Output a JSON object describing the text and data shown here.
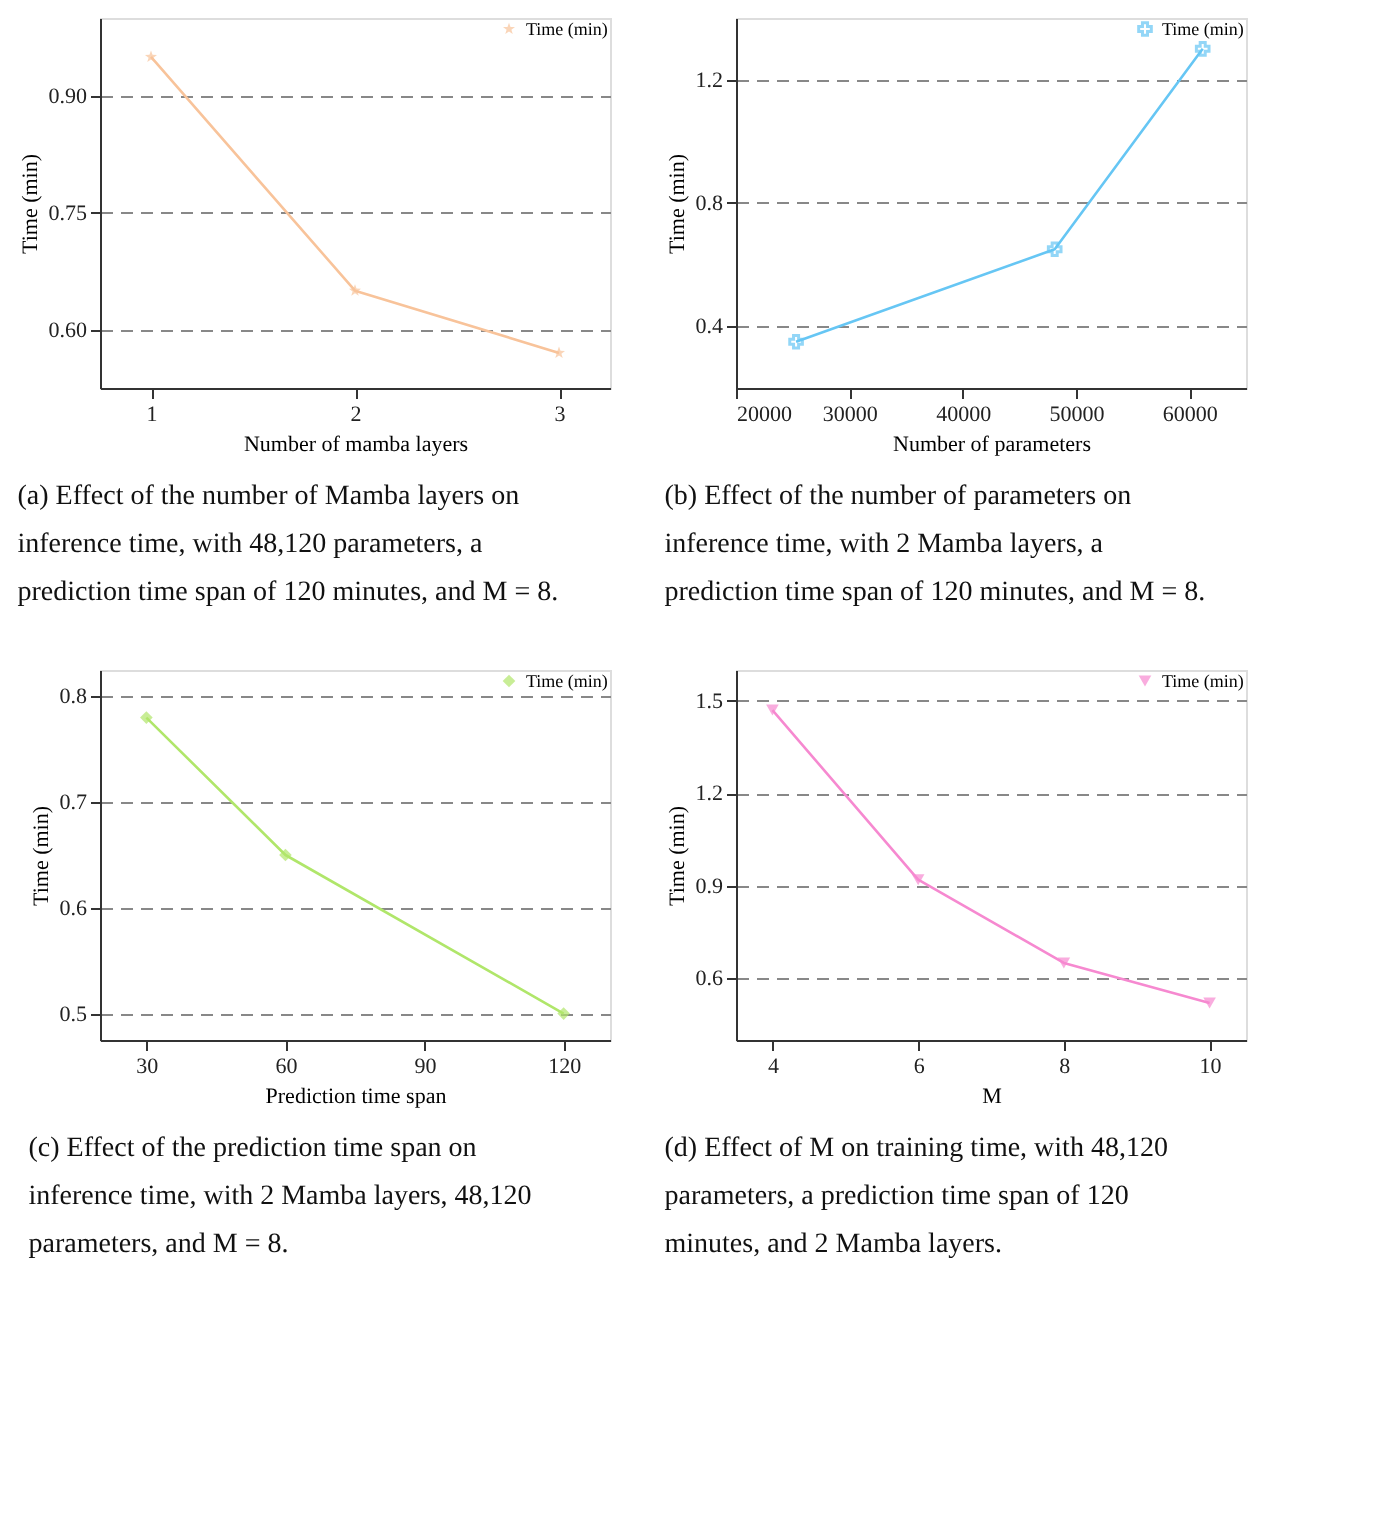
{
  "chart_data": [
    {
      "type": "line",
      "xlabel": "Number of mamba layers",
      "ylabel": "Time (min)",
      "x": [
        1,
        2,
        3
      ],
      "series": [
        {
          "name": "Time (min)",
          "color": "#f8c39a",
          "values": [
            0.95,
            0.65,
            0.57
          ]
        }
      ],
      "xlim": [
        0.75,
        3.25
      ],
      "xticks": [
        1,
        2,
        3
      ],
      "ylim": [
        0.525,
        1.0
      ],
      "yticks": [
        {
          "value": 0.6,
          "label": "0.60"
        },
        {
          "value": 0.75,
          "label": "0.75"
        },
        {
          "value": 0.9,
          "label": "0.90"
        }
      ],
      "grid": "y",
      "legend": "top right",
      "marker": "star",
      "line_style": "solid",
      "annotations": [
        "(a) Effect of the number of Mamba layers on inference time, with 48,120 parameters, a prediction time span of 120 minutes, and M = 8."
      ]
    },
    {
      "type": "line",
      "xlabel": "Number of parameters",
      "ylabel": "Time (min)",
      "x": [
        25300,
        48120,
        61180
      ],
      "series": [
        {
          "name": "Time (min)",
          "color": "#66c6f4",
          "values": [
            0.35,
            0.65,
            1.3
          ]
        }
      ],
      "xlim": [
        20000,
        65000
      ],
      "xticks": [
        20000,
        30000,
        40000,
        50000,
        60000
      ],
      "ylim": [
        0.2,
        1.4
      ],
      "yticks": [
        0.4,
        0.8,
        1.2
      ],
      "grid": "y",
      "legend": "top right",
      "marker": "cross",
      "line_style": "solid",
      "annotations": [
        "(b) Effect of the number of parameters on inference time, with 2 Mamba layers, a prediction time span of 120 minutes, and M = 8."
      ]
    },
    {
      "type": "line",
      "xlabel": "Prediction time span",
      "ylabel": "Time (min)",
      "x": [
        30,
        60,
        120
      ],
      "series": [
        {
          "name": "Time (min)",
          "color": "#b0e66a",
          "values": [
            0.78,
            0.65,
            0.5
          ]
        }
      ],
      "xlim": [
        20,
        130
      ],
      "xticks": [
        30,
        60,
        90,
        120
      ],
      "ylim": [
        0.475,
        0.825
      ],
      "yticks": [
        0.5,
        0.6,
        0.7,
        0.8
      ],
      "grid": "y",
      "legend": "top right",
      "marker": "diamond",
      "line_style": "solid",
      "annotations": [
        "(c) Effect of the prediction time span on inference time, with 2 Mamba layers, 48,120 parameters, and M = 8."
      ]
    },
    {
      "type": "line",
      "xlabel": "M",
      "ylabel": "Time (min)",
      "x": [
        4,
        6,
        8,
        10
      ],
      "series": [
        {
          "name": "Time (min)",
          "color": "#f689d0",
          "values": [
            1.47,
            0.92,
            0.65,
            0.52
          ]
        }
      ],
      "xlim": [
        3.5,
        10.5
      ],
      "xticks": [
        4,
        6,
        8,
        10
      ],
      "ylim": [
        0.4,
        1.6
      ],
      "yticks": [
        0.6,
        0.9,
        1.2,
        1.5
      ],
      "grid": "y",
      "legend": "top right",
      "marker": "triangle",
      "line_style": "solid",
      "annotations": [
        "(d) Effect of M on training time, with 48,120 parameters, a prediction time span of 120 minutes, and 2 Mamba layers."
      ]
    }
  ]
}
